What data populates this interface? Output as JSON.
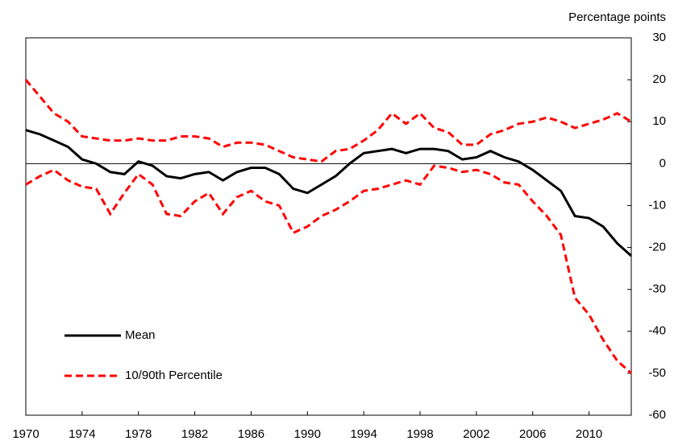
{
  "chart_data": {
    "type": "line",
    "y_axis_label": "Percentage points",
    "x": [
      1970,
      1971,
      1972,
      1973,
      1974,
      1975,
      1976,
      1977,
      1978,
      1979,
      1980,
      1981,
      1982,
      1983,
      1984,
      1985,
      1986,
      1987,
      1988,
      1989,
      1990,
      1991,
      1992,
      1993,
      1994,
      1995,
      1996,
      1997,
      1998,
      1999,
      2000,
      2001,
      2002,
      2003,
      2004,
      2005,
      2006,
      2007,
      2008,
      2009,
      2010,
      2011,
      2012,
      2013
    ],
    "series": [
      {
        "name": "Mean",
        "color": "#000000",
        "dashed": false,
        "values": [
          8,
          7,
          5.5,
          4,
          1,
          0,
          -2,
          -2.5,
          0.5,
          -0.5,
          -3,
          -3.5,
          -2.5,
          -2,
          -4,
          -2,
          -1,
          -1,
          -2.5,
          -6,
          -7,
          -5,
          -3,
          0,
          2.5,
          3,
          3.5,
          2.5,
          3.5,
          3.5,
          3,
          1,
          1.5,
          3,
          1.5,
          0.5,
          -1.5,
          -4,
          -6.5,
          -12.5,
          -13,
          -15,
          -19,
          -22
        ]
      },
      {
        "name": "10/90th Percentile",
        "color": "#ff0000",
        "dashed": true,
        "values": [
          20,
          16,
          12,
          10,
          6.5,
          6,
          5.5,
          5.5,
          6,
          5.5,
          5.5,
          6.5,
          6.5,
          6,
          4,
          5,
          5,
          4.5,
          3,
          1.5,
          1,
          0.5,
          3,
          3.5,
          5.5,
          8,
          12,
          9.5,
          12,
          8.5,
          7.5,
          4.5,
          4.5,
          7,
          8,
          9.5,
          10,
          11,
          10,
          8.5,
          9.5,
          10.5,
          12,
          10
        ],
        "lower": [
          -5,
          -3,
          -1.5,
          -4,
          -5.5,
          -6,
          -12,
          -7,
          -2.5,
          -5,
          -12,
          -12.5,
          -9,
          -7,
          -12,
          -8,
          -6.5,
          -9,
          -10,
          -16.5,
          -15,
          -12.5,
          -11,
          -9,
          -6.5,
          -6,
          -5,
          -4,
          -5,
          -0.5,
          -1,
          -2,
          -1.5,
          -2.5,
          -4.5,
          -5,
          -9,
          -12.5,
          -17,
          -32,
          -36,
          -42,
          -47,
          -50
        ]
      }
    ],
    "xlim": [
      1970,
      2013
    ],
    "xticks": [
      1970,
      1974,
      1978,
      1982,
      1986,
      1990,
      1994,
      1998,
      2002,
      2006,
      2010
    ],
    "ylim": [
      -60,
      30
    ],
    "yticks": [
      -60,
      -50,
      -40,
      -30,
      -20,
      -10,
      0,
      10,
      20,
      30
    ],
    "grid": false
  }
}
